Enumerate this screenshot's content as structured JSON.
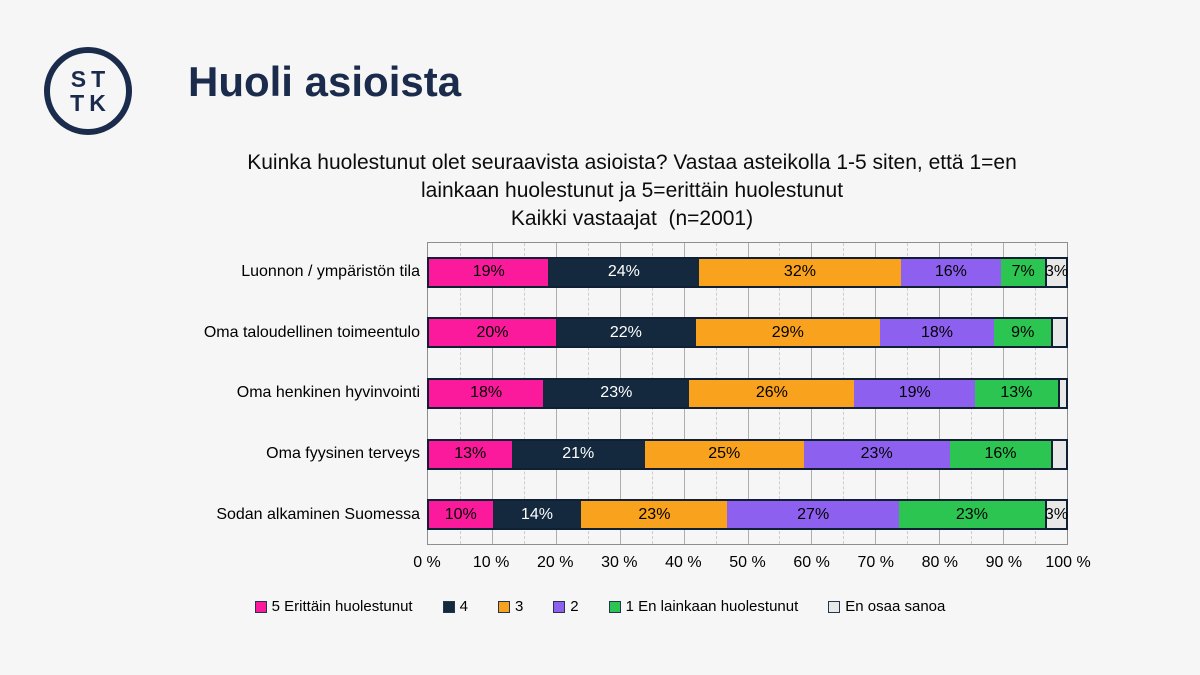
{
  "page": {
    "background": "#f6f6f6"
  },
  "header": {
    "logo_lines": [
      "ST",
      "TK"
    ],
    "title": "Huoli asioista",
    "brand_color": "#1b2b4c"
  },
  "chart_data": {
    "type": "bar",
    "orientation": "horizontal-stacked",
    "subtitle_lines": [
      "Kuinka huolestunut olet seuraavista asioista? Vastaa asteikolla 1-5 siten, että 1=en",
      "lainkaan huolestunut ja 5=erittäin huolestunut",
      "Kaikki vastaajat  (n=2001)"
    ],
    "categories": [
      "Luonnon / ympäristön tila",
      "Oma taloudellinen toimeentulo",
      "Oma henkinen hyvinvointi",
      "Oma fyysinen terveys",
      "Sodan alkaminen Suomessa"
    ],
    "series": [
      {
        "name": "5 Erittäin huolestunut",
        "color": "#fa1a9b",
        "label_color": "#000000",
        "values": [
          19,
          20,
          18,
          13,
          10
        ]
      },
      {
        "name": "4",
        "color": "#14283e",
        "label_color": "#ffffff",
        "values": [
          24,
          22,
          23,
          21,
          14
        ]
      },
      {
        "name": "3",
        "color": "#f9a21d",
        "label_color": "#000000",
        "values": [
          32,
          29,
          26,
          25,
          23
        ]
      },
      {
        "name": "2",
        "color": "#8e60f0",
        "label_color": "#000000",
        "values": [
          16,
          18,
          19,
          23,
          27
        ]
      },
      {
        "name": "1 En lainkaan huolestunut",
        "color": "#2cc551",
        "label_color": "#000000",
        "values": [
          7,
          9,
          13,
          16,
          23
        ]
      },
      {
        "name": "En osaa sanoa",
        "color": "#e8e8e8",
        "label_color": "#000000",
        "values": [
          3,
          2,
          1,
          2,
          3
        ]
      }
    ],
    "data_label_format": "{value}%",
    "data_label_min_value": 3,
    "x_ticks": [
      "0 %",
      "10 %",
      "20 %",
      "30 %",
      "40 %",
      "50 %",
      "60 %",
      "70 %",
      "80 %",
      "90 %",
      "100 %"
    ],
    "xlim": [
      0,
      100
    ],
    "grid": {
      "major_step": 10,
      "minor_step": 5
    },
    "legend_position": "bottom"
  }
}
